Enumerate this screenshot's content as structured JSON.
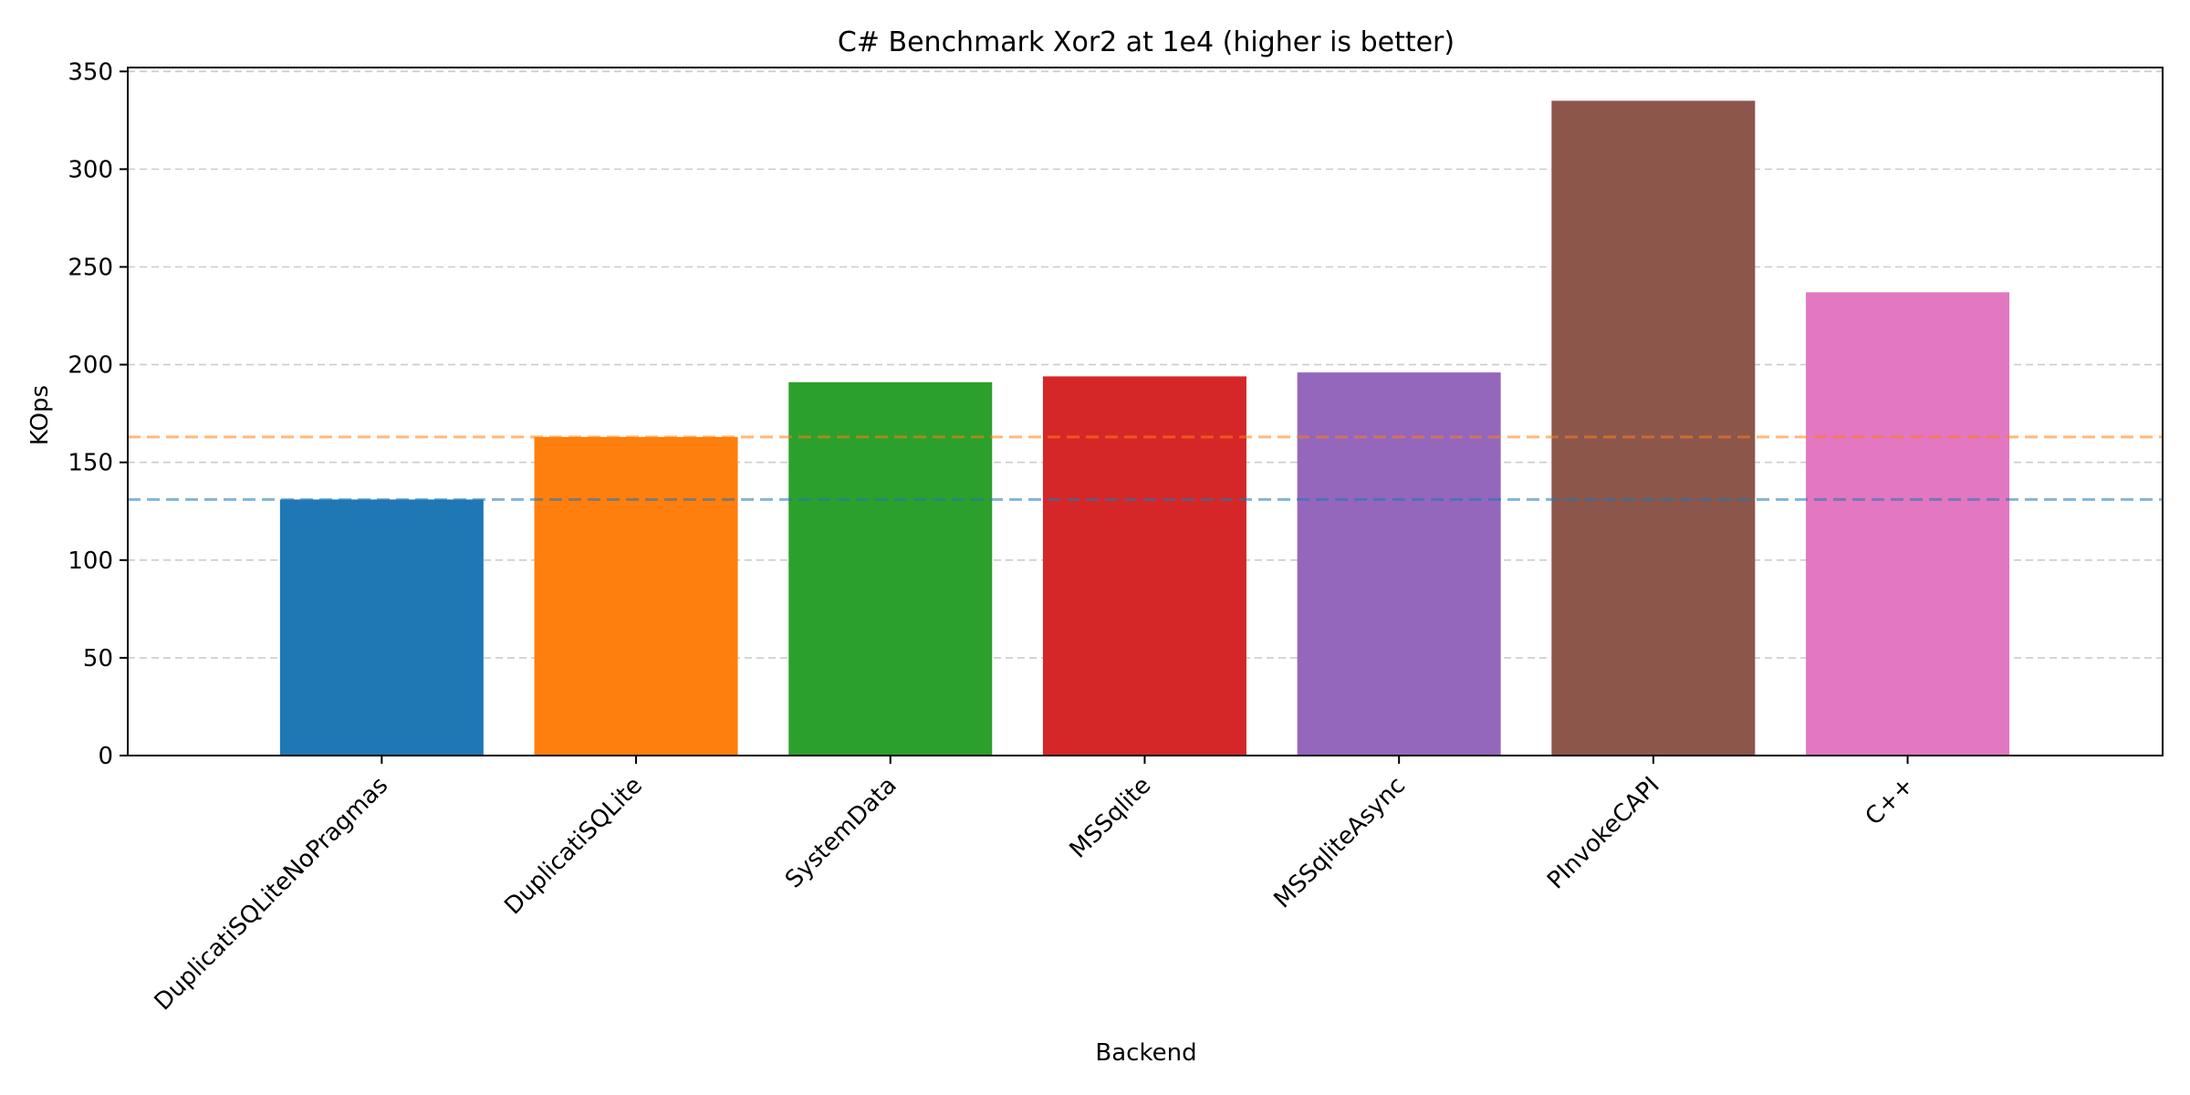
{
  "chart_data": {
    "type": "bar",
    "title": "C# Benchmark Xor2 at 1e4 (higher is better)",
    "xlabel": "Backend",
    "ylabel": "KOps",
    "categories": [
      "DuplicatiSQLiteNoPragmas",
      "DuplicatiSQLite",
      "SystemData",
      "MSSqlite",
      "MSSqliteAsync",
      "PInvokeCAPI",
      "C++"
    ],
    "values": [
      131,
      163,
      191,
      194,
      196,
      335,
      237
    ],
    "colors": [
      "#1f77b4",
      "#ff7f0e",
      "#2ca02c",
      "#d62728",
      "#9467bd",
      "#8c564b",
      "#e377c2"
    ],
    "ylim": [
      0,
      352
    ],
    "yticks": [
      0,
      50,
      100,
      150,
      200,
      250,
      300,
      350
    ],
    "grid": "y-dashed",
    "reference_lines": [
      {
        "value": 131,
        "color": "#1f77b4"
      },
      {
        "value": 163,
        "color": "#ff7f0e"
      }
    ]
  }
}
